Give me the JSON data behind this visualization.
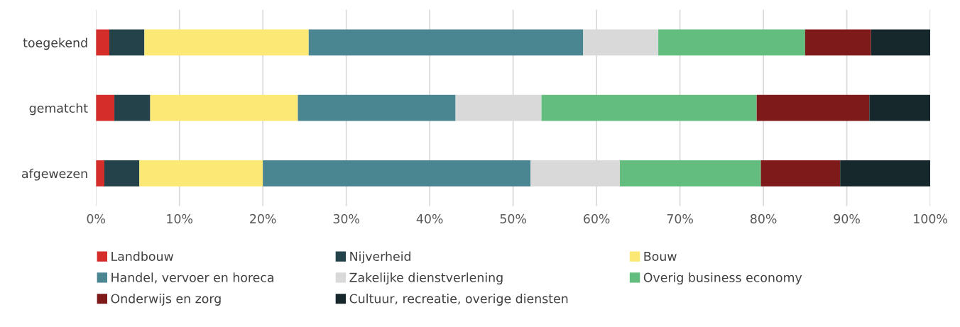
{
  "chart_data": {
    "type": "bar",
    "orientation": "horizontal",
    "stacked": true,
    "categories": [
      "toegekend",
      "gematcht",
      "afgewezen"
    ],
    "series": [
      {
        "name": "Landbouw",
        "color": "#d42d2a",
        "values": [
          1.6,
          2.2,
          1.0
        ]
      },
      {
        "name": "Nijverheid",
        "color": "#24424a",
        "values": [
          4.2,
          4.3,
          4.2
        ]
      },
      {
        "name": "Bouw",
        "color": "#fce975",
        "values": [
          19.7,
          17.7,
          14.8
        ]
      },
      {
        "name": "Handel, vervoer en horeca",
        "color": "#4a8592",
        "values": [
          32.9,
          18.9,
          32.1
        ]
      },
      {
        "name": "Zakelijke dienstverlening",
        "color": "#d9d9d9",
        "values": [
          9.0,
          10.3,
          10.7
        ]
      },
      {
        "name": "Overig business economy",
        "color": "#63bd7e",
        "values": [
          17.6,
          25.8,
          16.9
        ]
      },
      {
        "name": "Onderwijs en zorg",
        "color": "#7f1a1a",
        "values": [
          7.9,
          13.5,
          9.5
        ]
      },
      {
        "name": "Cultuur, recreatie, overige diensten",
        "color": "#17282c",
        "values": [
          7.1,
          7.3,
          10.8
        ]
      }
    ],
    "xlim": [
      0,
      100
    ],
    "xticks": [
      {
        "value": 0,
        "label": "0%"
      },
      {
        "value": 10,
        "label": "10%"
      },
      {
        "value": 20,
        "label": "20%"
      },
      {
        "value": 30,
        "label": "30%"
      },
      {
        "value": 40,
        "label": "40%"
      },
      {
        "value": 50,
        "label": "50%"
      },
      {
        "value": 60,
        "label": "60%"
      },
      {
        "value": 70,
        "label": "70%"
      },
      {
        "value": 80,
        "label": "80%"
      },
      {
        "value": 90,
        "label": "90%"
      },
      {
        "value": 100,
        "label": "100%"
      }
    ],
    "grid": "x",
    "legend": "bottom"
  }
}
